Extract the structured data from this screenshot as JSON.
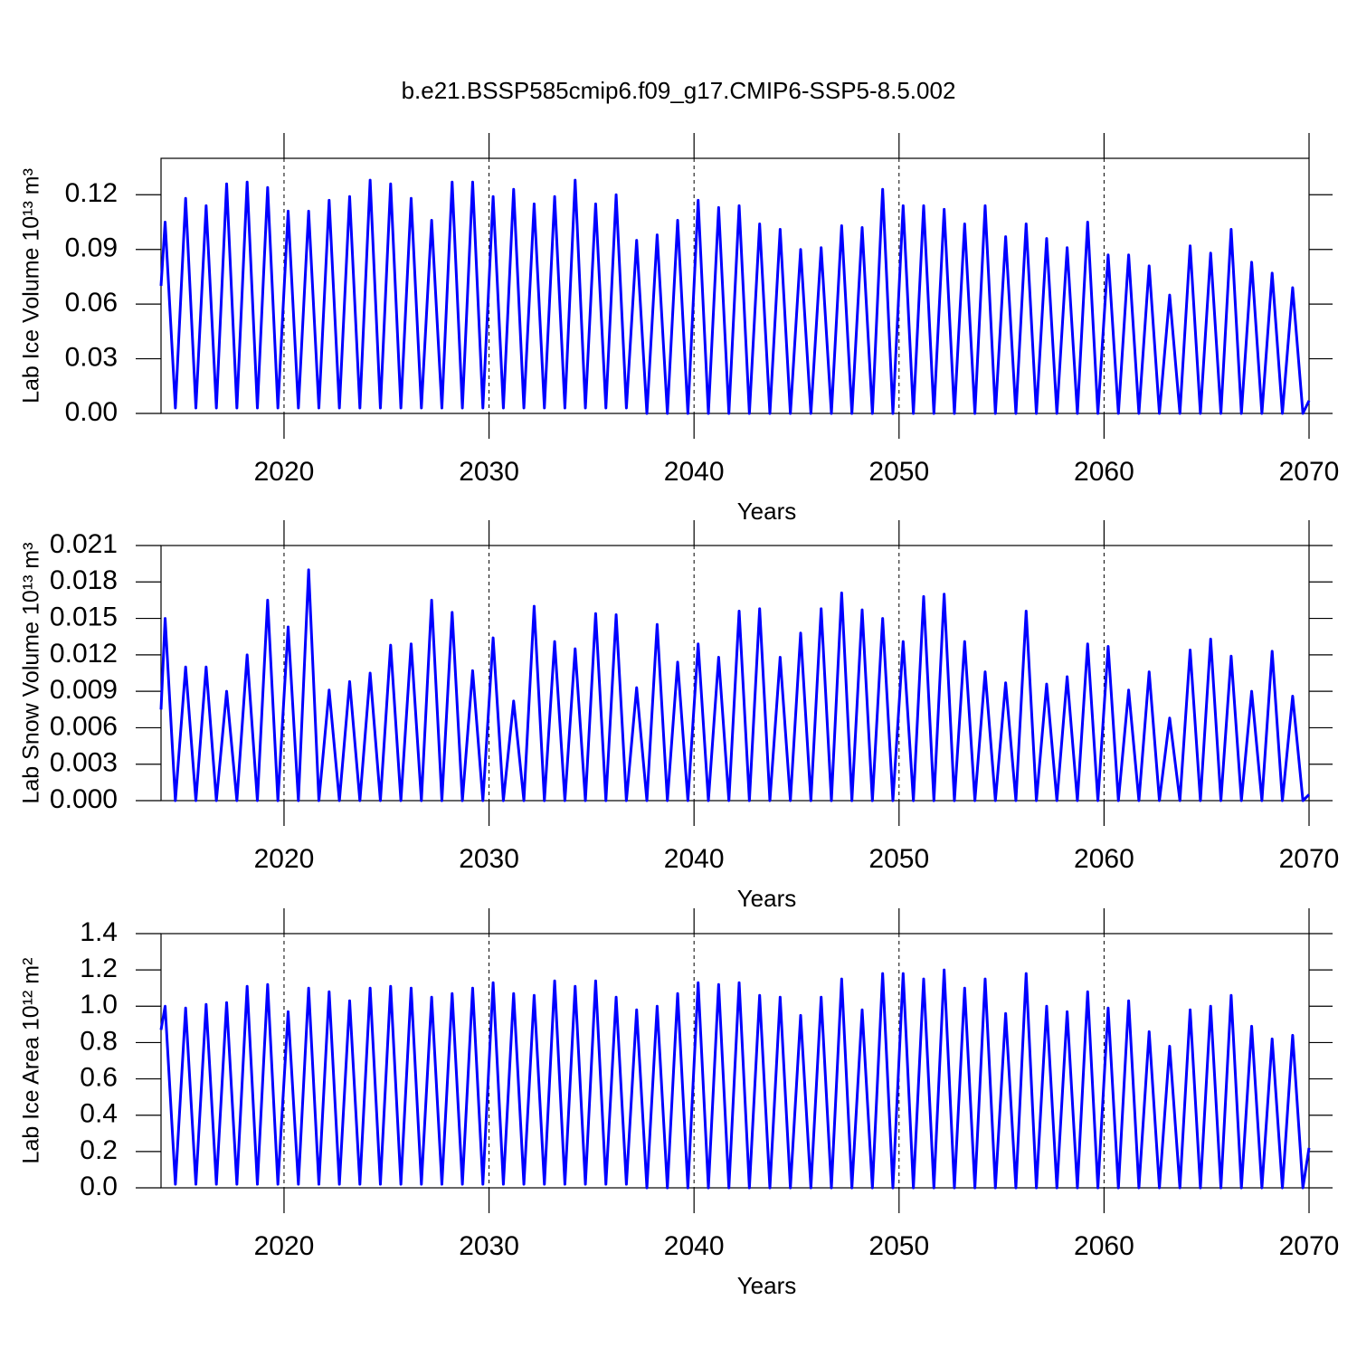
{
  "chart_data": [
    {
      "type": "line",
      "title": "b.e21.BSSP585cmip6.f09_g17.CMIP6-SSP5-8.5.002",
      "xlabel": "Years",
      "ylabel": "Lab Ice Volume 10¹³ m³",
      "xlim": [
        2014,
        2070
      ],
      "xticks": [
        2020,
        2030,
        2040,
        2050,
        2060,
        2070
      ],
      "grid": true,
      "ylim": [
        0,
        0.14
      ],
      "yticks": [
        {
          "value": 0,
          "label": "0.00"
        },
        {
          "value": 0.03,
          "label": "0.03"
        },
        {
          "value": 0.06,
          "label": "0.06"
        },
        {
          "value": 0.09,
          "label": "0.09"
        },
        {
          "value": 0.12,
          "label": "0.12"
        }
      ],
      "x": [
        2014,
        2014.2,
        2014.7,
        2015.2,
        2015.7,
        2016.2,
        2016.7,
        2017.2,
        2017.7,
        2018.2,
        2018.7,
        2019.2,
        2019.7,
        2020.2,
        2020.7,
        2021.2,
        2021.7,
        2022.2,
        2022.7,
        2023.2,
        2023.7,
        2024.2,
        2024.7,
        2025.2,
        2025.7,
        2026.2,
        2026.7,
        2027.2,
        2027.7,
        2028.2,
        2028.7,
        2029.2,
        2029.7,
        2030.2,
        2030.7,
        2031.2,
        2031.7,
        2032.2,
        2032.7,
        2033.2,
        2033.7,
        2034.2,
        2034.7,
        2035.2,
        2035.7,
        2036.2,
        2036.7,
        2037.2,
        2037.7,
        2038.2,
        2038.7,
        2039.2,
        2039.7,
        2040.2,
        2040.7,
        2041.2,
        2041.7,
        2042.2,
        2042.7,
        2043.2,
        2043.7,
        2044.2,
        2044.7,
        2045.2,
        2045.7,
        2046.2,
        2046.7,
        2047.2,
        2047.7,
        2048.2,
        2048.7,
        2049.2,
        2049.7,
        2050.2,
        2050.7,
        2051.2,
        2051.7,
        2052.2,
        2052.7,
        2053.2,
        2053.7,
        2054.2,
        2054.7,
        2055.2,
        2055.7,
        2056.2,
        2056.7,
        2057.2,
        2057.7,
        2058.2,
        2058.7,
        2059.2,
        2059.7,
        2060.2,
        2060.7,
        2061.2,
        2061.7,
        2062.2,
        2062.7,
        2063.2,
        2063.7,
        2064.2,
        2064.7,
        2065.2,
        2065.7,
        2066.2,
        2066.7,
        2067.2,
        2067.7,
        2068.2,
        2068.7,
        2069.2,
        2069.7,
        2070
      ],
      "series": [
        {
          "color": "#0000ff",
          "values": [
            0.07,
            0.105,
            0.003,
            0.118,
            0.003,
            0.114,
            0.003,
            0.126,
            0.003,
            0.127,
            0.003,
            0.124,
            0.003,
            0.111,
            0.003,
            0.111,
            0.003,
            0.117,
            0.003,
            0.119,
            0.003,
            0.128,
            0.003,
            0.126,
            0.003,
            0.118,
            0.003,
            0.106,
            0.003,
            0.127,
            0.003,
            0.127,
            0.003,
            0.119,
            0.003,
            0.123,
            0.003,
            0.115,
            0.003,
            0.119,
            0.003,
            0.128,
            0.003,
            0.115,
            0.003,
            0.12,
            0.003,
            0.095,
            0,
            0.098,
            0,
            0.106,
            0,
            0.117,
            0,
            0.113,
            0,
            0.114,
            0,
            0.104,
            0,
            0.101,
            0,
            0.09,
            0,
            0.091,
            0,
            0.103,
            0,
            0.102,
            0,
            0.123,
            0,
            0.114,
            0,
            0.114,
            0,
            0.112,
            0,
            0.104,
            0,
            0.114,
            0,
            0.097,
            0,
            0.104,
            0,
            0.096,
            0,
            0.091,
            0,
            0.105,
            0,
            0.087,
            0,
            0.087,
            0,
            0.081,
            0,
            0.065,
            0,
            0.092,
            0,
            0.088,
            0,
            0.101,
            0,
            0.083,
            0,
            0.077,
            0,
            0.069,
            0,
            0.007
          ]
        }
      ]
    },
    {
      "type": "line",
      "xlabel": "Years",
      "ylabel": "Lab Snow Volume 10¹³ m³",
      "xlim": [
        2014,
        2070
      ],
      "xticks": [
        2020,
        2030,
        2040,
        2050,
        2060,
        2070
      ],
      "grid": true,
      "ylim": [
        0,
        0.021
      ],
      "yticks": [
        {
          "value": 0,
          "label": "0.000"
        },
        {
          "value": 0.003,
          "label": "0.003"
        },
        {
          "value": 0.006,
          "label": "0.006"
        },
        {
          "value": 0.009,
          "label": "0.009"
        },
        {
          "value": 0.012,
          "label": "0.012"
        },
        {
          "value": 0.015,
          "label": "0.015"
        },
        {
          "value": 0.018,
          "label": "0.018"
        },
        {
          "value": 0.021,
          "label": "0.021"
        }
      ],
      "x": [
        2014,
        2014.2,
        2014.7,
        2015.2,
        2015.7,
        2016.2,
        2016.7,
        2017.2,
        2017.7,
        2018.2,
        2018.7,
        2019.2,
        2019.7,
        2020.2,
        2020.7,
        2021.2,
        2021.7,
        2022.2,
        2022.7,
        2023.2,
        2023.7,
        2024.2,
        2024.7,
        2025.2,
        2025.7,
        2026.2,
        2026.7,
        2027.2,
        2027.7,
        2028.2,
        2028.7,
        2029.2,
        2029.7,
        2030.2,
        2030.7,
        2031.2,
        2031.7,
        2032.2,
        2032.7,
        2033.2,
        2033.7,
        2034.2,
        2034.7,
        2035.2,
        2035.7,
        2036.2,
        2036.7,
        2037.2,
        2037.7,
        2038.2,
        2038.7,
        2039.2,
        2039.7,
        2040.2,
        2040.7,
        2041.2,
        2041.7,
        2042.2,
        2042.7,
        2043.2,
        2043.7,
        2044.2,
        2044.7,
        2045.2,
        2045.7,
        2046.2,
        2046.7,
        2047.2,
        2047.7,
        2048.2,
        2048.7,
        2049.2,
        2049.7,
        2050.2,
        2050.7,
        2051.2,
        2051.7,
        2052.2,
        2052.7,
        2053.2,
        2053.7,
        2054.2,
        2054.7,
        2055.2,
        2055.7,
        2056.2,
        2056.7,
        2057.2,
        2057.7,
        2058.2,
        2058.7,
        2059.2,
        2059.7,
        2060.2,
        2060.7,
        2061.2,
        2061.7,
        2062.2,
        2062.7,
        2063.2,
        2063.7,
        2064.2,
        2064.7,
        2065.2,
        2065.7,
        2066.2,
        2066.7,
        2067.2,
        2067.7,
        2068.2,
        2068.7,
        2069.2,
        2069.7,
        2070
      ],
      "series": [
        {
          "color": "#0000ff",
          "values": [
            0.0075,
            0.015,
            0,
            0.011,
            0,
            0.011,
            0,
            0.009,
            0,
            0.012,
            0,
            0.0165,
            0,
            0.0143,
            0,
            0.019,
            0,
            0.0091,
            0,
            0.0098,
            0,
            0.0105,
            0,
            0.0128,
            0,
            0.0129,
            0,
            0.0165,
            0,
            0.0155,
            0,
            0.0107,
            0,
            0.0134,
            0,
            0.0082,
            0,
            0.016,
            0,
            0.0131,
            0,
            0.0125,
            0,
            0.0154,
            0,
            0.0153,
            0,
            0.0093,
            0,
            0.0145,
            0,
            0.0114,
            0,
            0.0129,
            0,
            0.0118,
            0,
            0.0156,
            0,
            0.0158,
            0,
            0.0118,
            0,
            0.0138,
            0,
            0.0158,
            0,
            0.0171,
            0,
            0.0157,
            0,
            0.015,
            0,
            0.0131,
            0,
            0.0168,
            0,
            0.017,
            0,
            0.0131,
            0,
            0.0106,
            0,
            0.0097,
            0,
            0.0156,
            0,
            0.0096,
            0,
            0.0102,
            0,
            0.0129,
            0,
            0.0127,
            0,
            0.0091,
            0,
            0.0106,
            0,
            0.0068,
            0,
            0.0124,
            0,
            0.0133,
            0,
            0.0119,
            0,
            0.009,
            0,
            0.0123,
            0,
            0.0086,
            0,
            0.0005
          ]
        }
      ]
    },
    {
      "type": "line",
      "xlabel": "Years",
      "ylabel": "Lab Ice Area 10¹² m²",
      "xlim": [
        2014,
        2070
      ],
      "xticks": [
        2020,
        2030,
        2040,
        2050,
        2060,
        2070
      ],
      "grid": true,
      "ylim": [
        0,
        1.4
      ],
      "yticks": [
        {
          "value": 0,
          "label": "0.0"
        },
        0.2,
        0.4,
        0.6,
        0.8,
        {
          "value": 1,
          "label": "1.0"
        },
        1.2,
        1.4
      ],
      "x": [
        2014,
        2014.2,
        2014.7,
        2015.2,
        2015.7,
        2016.2,
        2016.7,
        2017.2,
        2017.7,
        2018.2,
        2018.7,
        2019.2,
        2019.7,
        2020.2,
        2020.7,
        2021.2,
        2021.7,
        2022.2,
        2022.7,
        2023.2,
        2023.7,
        2024.2,
        2024.7,
        2025.2,
        2025.7,
        2026.2,
        2026.7,
        2027.2,
        2027.7,
        2028.2,
        2028.7,
        2029.2,
        2029.7,
        2030.2,
        2030.7,
        2031.2,
        2031.7,
        2032.2,
        2032.7,
        2033.2,
        2033.7,
        2034.2,
        2034.7,
        2035.2,
        2035.7,
        2036.2,
        2036.7,
        2037.2,
        2037.7,
        2038.2,
        2038.7,
        2039.2,
        2039.7,
        2040.2,
        2040.7,
        2041.2,
        2041.7,
        2042.2,
        2042.7,
        2043.2,
        2043.7,
        2044.2,
        2044.7,
        2045.2,
        2045.7,
        2046.2,
        2046.7,
        2047.2,
        2047.7,
        2048.2,
        2048.7,
        2049.2,
        2049.7,
        2050.2,
        2050.7,
        2051.2,
        2051.7,
        2052.2,
        2052.7,
        2053.2,
        2053.7,
        2054.2,
        2054.7,
        2055.2,
        2055.7,
        2056.2,
        2056.7,
        2057.2,
        2057.7,
        2058.2,
        2058.7,
        2059.2,
        2059.7,
        2060.2,
        2060.7,
        2061.2,
        2061.7,
        2062.2,
        2062.7,
        2063.2,
        2063.7,
        2064.2,
        2064.7,
        2065.2,
        2065.7,
        2066.2,
        2066.7,
        2067.2,
        2067.7,
        2068.2,
        2068.7,
        2069.2,
        2069.7,
        2070
      ],
      "series": [
        {
          "color": "#0000ff",
          "values": [
            0.87,
            1.0,
            0.02,
            0.99,
            0.02,
            1.01,
            0.02,
            1.02,
            0.02,
            1.11,
            0.02,
            1.12,
            0.02,
            0.97,
            0.02,
            1.1,
            0.02,
            1.08,
            0.02,
            1.03,
            0.02,
            1.1,
            0.02,
            1.11,
            0.02,
            1.1,
            0.02,
            1.05,
            0.02,
            1.07,
            0.02,
            1.1,
            0.02,
            1.13,
            0.02,
            1.07,
            0.02,
            1.06,
            0.02,
            1.14,
            0.02,
            1.11,
            0.02,
            1.14,
            0.02,
            1.05,
            0.02,
            0.98,
            0,
            1.0,
            0,
            1.07,
            0,
            1.13,
            0,
            1.12,
            0,
            1.13,
            0,
            1.06,
            0,
            1.05,
            0,
            0.95,
            0,
            1.05,
            0,
            1.15,
            0,
            0.98,
            0,
            1.18,
            0,
            1.18,
            0,
            1.15,
            0,
            1.2,
            0,
            1.1,
            0,
            1.15,
            0,
            0.96,
            0,
            1.18,
            0,
            1.0,
            0,
            0.97,
            0,
            1.08,
            0,
            0.99,
            0,
            1.03,
            0,
            0.86,
            0,
            0.78,
            0,
            0.98,
            0,
            1.0,
            0,
            1.06,
            0,
            0.89,
            0,
            0.82,
            0,
            0.84,
            0,
            0.22
          ]
        }
      ]
    }
  ]
}
